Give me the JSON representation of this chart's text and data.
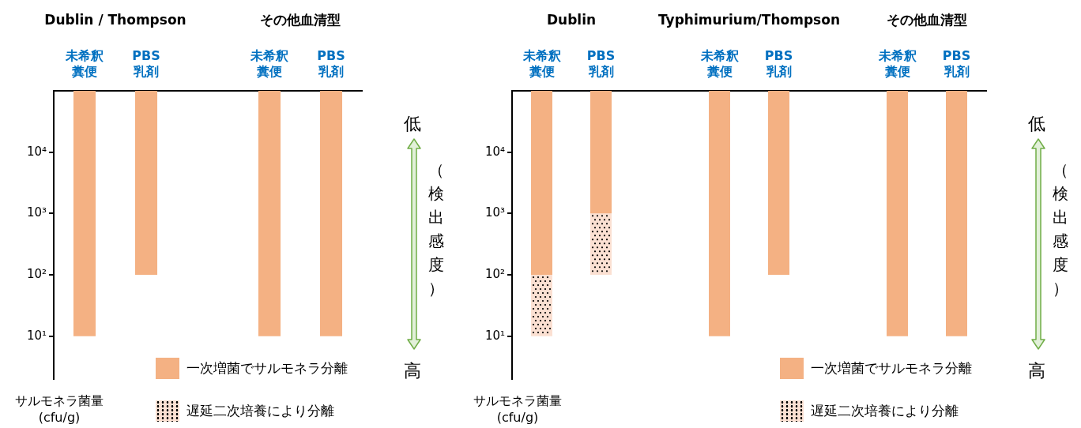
{
  "chart_data": [
    {
      "type": "bar",
      "categories": [
        "未希釈糞便",
        "PBS\n乳剤",
        null,
        "未希釈糞便",
        "PBS\n乳剤"
      ],
      "ylabel": "サルモネラ菌量\n(cfu/g)",
      "log": "y",
      "ylim": [
        2,
        100000
      ],
      "yticks": [
        {
          "value": 10,
          "label": "10¹"
        },
        {
          "value": 100,
          "label": "10²"
        },
        {
          "value": 1000,
          "label": "10³"
        },
        {
          "value": 10000,
          "label": "10⁴"
        }
      ],
      "grid": false,
      "legend": "bottom right",
      "annotations": [
        "Dublin / Thompson",
        "その他血清型",
        "低",
        "（検出感度）",
        "高"
      ],
      "series": [
        {
          "name": "一次増菌でサルモネラ分離",
          "color": "#f4b183",
          "base": [
            10,
            100,
            null,
            10,
            10
          ],
          "values": [
            99990,
            99900,
            null,
            99990,
            99990
          ]
        },
        {
          "name": "遅延二次培養により分離",
          "color": "#fbe0d2",
          "line_style": "dotted",
          "base": [
            null,
            null,
            null,
            null,
            null
          ],
          "values": [
            null,
            null,
            null,
            null,
            null
          ]
        }
      ]
    },
    {
      "type": "bar",
      "categories": [
        "未希釈糞便",
        "PBS\n乳剤",
        null,
        "未希釈糞便",
        "PBS\n乳剤",
        null,
        "未希釈糞便",
        "PBS\n乳剤"
      ],
      "ylabel": "サルモネラ菌量\n(cfu/g)",
      "log": "y",
      "ylim": [
        2,
        100000
      ],
      "yticks": [
        {
          "value": 10,
          "label": "10¹"
        },
        {
          "value": 100,
          "label": "10²"
        },
        {
          "value": 1000,
          "label": "10³"
        },
        {
          "value": 10000,
          "label": "10⁴"
        }
      ],
      "grid": false,
      "legend": "bottom right",
      "annotations": [
        "Dublin",
        "Typhimurium/Thompson",
        "その他血清型",
        "低",
        "（検出感度）",
        "高"
      ],
      "series": [
        {
          "name": "一次増菌でサルモネラ分離",
          "color": "#f4b183",
          "base": [
            100,
            1000,
            null,
            10,
            100,
            null,
            10,
            10
          ],
          "values": [
            99900,
            99000,
            null,
            99990,
            99900,
            null,
            99990,
            99990
          ]
        },
        {
          "name": "遅延二次培養により分離",
          "color": "#fbe0d2",
          "line_style": "dotted",
          "base": [
            10,
            100,
            null,
            null,
            null,
            null,
            null,
            null
          ],
          "values": [
            90,
            900,
            null,
            null,
            null,
            null,
            null,
            null
          ]
        }
      ]
    }
  ]
}
